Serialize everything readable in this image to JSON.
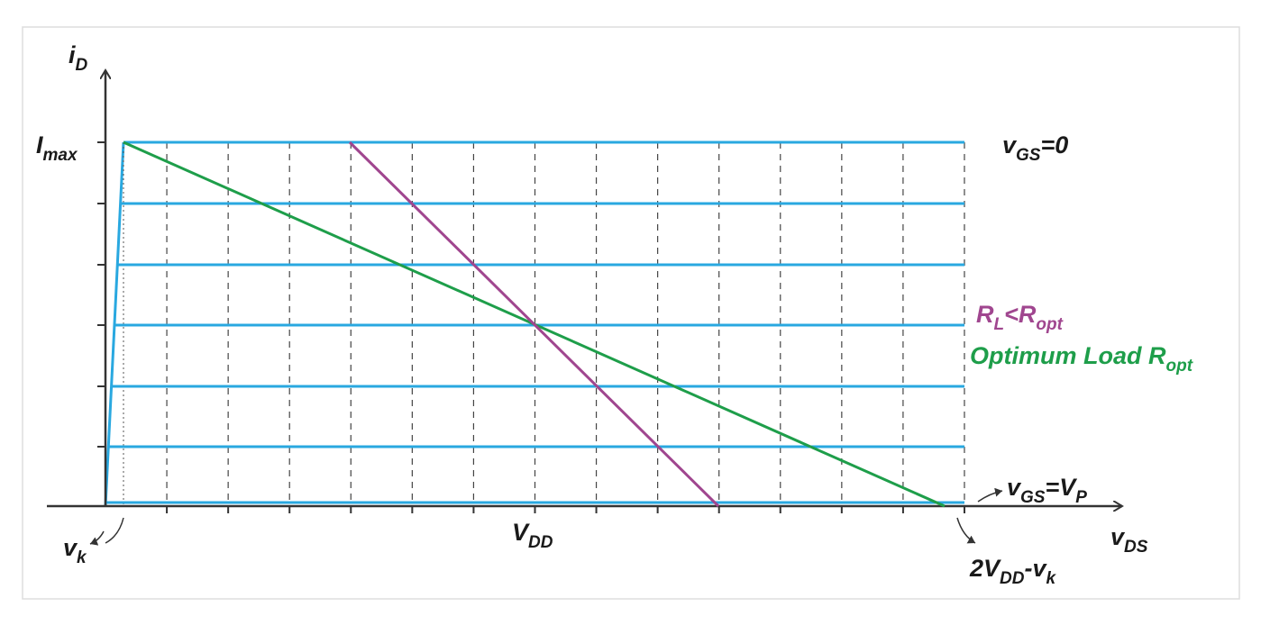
{
  "labels": [
    {
      "parts": [
        {
          "t": "i"
        },
        {
          "t": "D",
          "sub": true
        }
      ],
      "color": "#1a1a1a"
    },
    {
      "parts": [
        {
          "t": "I"
        },
        {
          "t": "max",
          "sub": true
        }
      ],
      "color": "#1a1a1a"
    },
    {
      "parts": [
        {
          "t": "v"
        },
        {
          "t": "GS",
          "sub": true
        },
        {
          "t": "=0"
        }
      ],
      "color": "#1a1a1a"
    },
    {
      "parts": [
        {
          "t": "R"
        },
        {
          "t": "L",
          "sub": true
        },
        {
          "t": "<R"
        },
        {
          "t": "opt",
          "sub": true
        }
      ],
      "color": "#a0468f"
    },
    {
      "parts": [
        {
          "t": "Optimum Load R"
        },
        {
          "t": "opt",
          "sub": true
        }
      ],
      "color": "#1e9e4a"
    },
    {
      "parts": [
        {
          "t": "v"
        },
        {
          "t": "GS",
          "sub": true
        },
        {
          "t": "=V"
        },
        {
          "t": "P",
          "sub": true
        }
      ],
      "color": "#1a1a1a"
    },
    {
      "parts": [
        {
          "t": "v"
        },
        {
          "t": "DS",
          "sub": true
        }
      ],
      "color": "#1a1a1a"
    },
    {
      "parts": [
        {
          "t": "V"
        },
        {
          "t": "DD",
          "sub": true
        }
      ],
      "color": "#1a1a1a"
    },
    {
      "parts": [
        {
          "t": "v"
        },
        {
          "t": "k",
          "sub": true
        }
      ],
      "color": "#1a1a1a"
    },
    {
      "parts": [
        {
          "t": "2V"
        },
        {
          "t": "DD",
          "sub": true
        },
        {
          "t": "-v"
        },
        {
          "t": "k",
          "sub": true
        }
      ],
      "color": "#1a1a1a"
    }
  ]
}
